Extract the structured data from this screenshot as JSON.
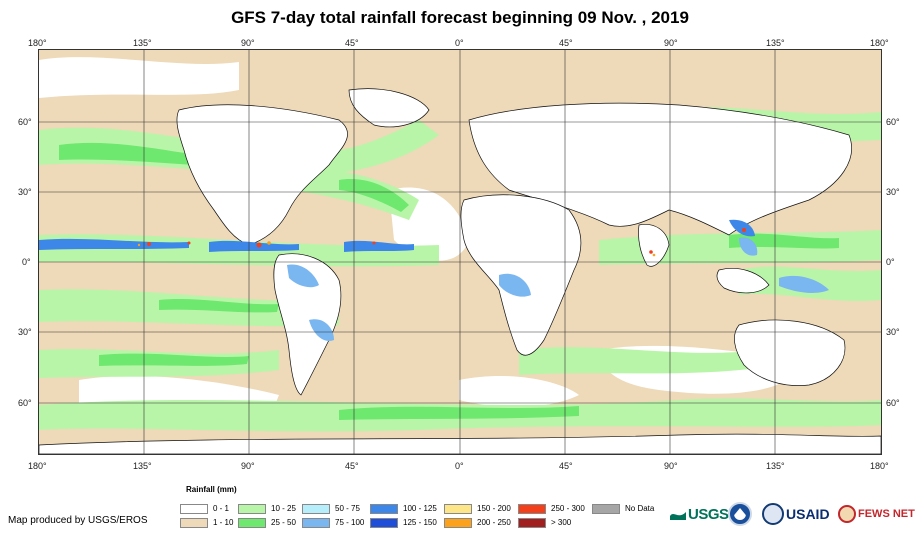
{
  "title": "GFS 7-day total rainfall forecast beginning 09 Nov. , 2019",
  "map": {
    "longitude_labels": [
      "180°",
      "135°",
      "90°",
      "45°",
      "0°",
      "45°",
      "90°",
      "135°",
      "180°"
    ],
    "latitude_labels": [
      "60°",
      "30°",
      "0°",
      "30°",
      "60°"
    ]
  },
  "legend": {
    "title": "Rainfall (mm)",
    "items": [
      {
        "label": "0 - 1",
        "color": "#ffffff"
      },
      {
        "label": "1 - 10",
        "color": "#eed9b8"
      },
      {
        "label": "10 - 25",
        "color": "#b9f5a8"
      },
      {
        "label": "25 - 50",
        "color": "#6ee86e"
      },
      {
        "label": "50 - 75",
        "color": "#b7eefc"
      },
      {
        "label": "75 - 100",
        "color": "#7ab6f0"
      },
      {
        "label": "100 - 125",
        "color": "#3d87e8"
      },
      {
        "label": "125 - 150",
        "color": "#1f4fd8"
      },
      {
        "label": "150 - 200",
        "color": "#fde68a"
      },
      {
        "label": "200 - 250",
        "color": "#fba11c"
      },
      {
        "label": "250 - 300",
        "color": "#f2401c"
      },
      {
        "label": "> 300",
        "color": "#a11f1f"
      },
      {
        "label": "No Data",
        "color": "#a6a6a6"
      }
    ]
  },
  "credit": "Map produced by USGS/EROS",
  "logos": {
    "usgs": "USGS",
    "usaid": "USAID",
    "fews": "FEWS NET"
  }
}
